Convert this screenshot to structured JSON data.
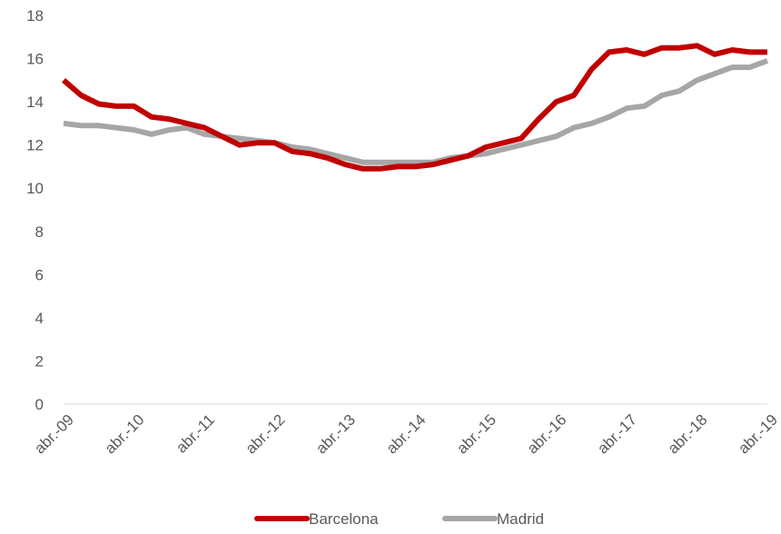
{
  "chart_data": {
    "type": "line",
    "categories": [
      "abr.-09",
      null,
      null,
      null,
      "abr.-10",
      null,
      null,
      null,
      "abr.-11",
      null,
      null,
      null,
      "abr.-12",
      null,
      null,
      null,
      "abr.-13",
      null,
      null,
      null,
      "abr.-14",
      null,
      null,
      null,
      "abr.-15",
      null,
      null,
      null,
      "abr.-16",
      null,
      null,
      null,
      "abr.-17",
      null,
      null,
      null,
      "abr.-18",
      null,
      null,
      null,
      "abr.-19"
    ],
    "series": [
      {
        "name": "Barcelona",
        "color": "#c00000",
        "values": [
          15.0,
          14.3,
          13.9,
          13.8,
          13.8,
          13.3,
          13.2,
          13.0,
          12.8,
          12.4,
          12.0,
          12.1,
          12.1,
          11.7,
          11.6,
          11.4,
          11.1,
          10.9,
          10.9,
          11.0,
          11.0,
          11.1,
          11.3,
          11.5,
          11.9,
          12.1,
          12.3,
          13.2,
          14.0,
          14.3,
          15.5,
          16.3,
          16.4,
          16.2,
          16.5,
          16.5,
          16.6,
          16.2,
          16.4,
          16.3,
          16.3
        ]
      },
      {
        "name": "Madrid",
        "color": "#a6a6a6",
        "values": [
          13.0,
          12.9,
          12.9,
          12.8,
          12.7,
          12.5,
          12.7,
          12.8,
          12.5,
          12.4,
          12.3,
          12.2,
          12.1,
          11.9,
          11.8,
          11.6,
          11.4,
          11.2,
          11.2,
          11.2,
          11.2,
          11.2,
          11.4,
          11.5,
          11.6,
          11.8,
          12.0,
          12.2,
          12.4,
          12.8,
          13.0,
          13.3,
          13.7,
          13.8,
          14.3,
          14.5,
          15.0,
          15.3,
          15.6,
          15.6,
          15.9
        ]
      }
    ],
    "ylim": [
      0,
      18
    ],
    "yticks": [
      0,
      2,
      4,
      6,
      8,
      10,
      12,
      14,
      16,
      18
    ],
    "legend": "bottom"
  }
}
